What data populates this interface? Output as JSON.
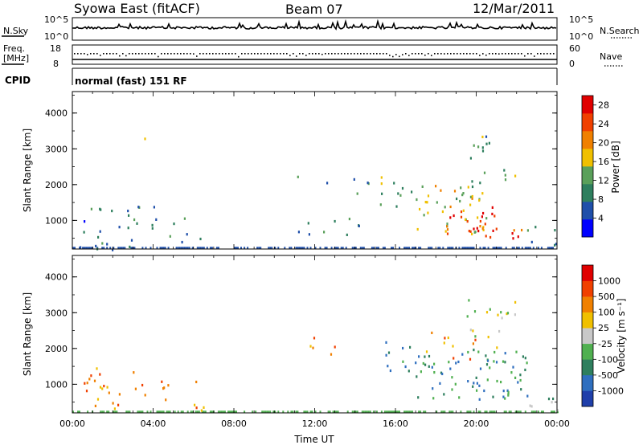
{
  "header": {
    "station": "Syowa East (fitACF)",
    "beam": "Beam 07",
    "date": "12/Mar/2011"
  },
  "noise_panel": {
    "left_label": "N.Sky",
    "right_label": "N.Search",
    "left_ticks": [
      "10^5",
      "10^0"
    ],
    "right_ticks": [
      "10^5",
      "10^0"
    ]
  },
  "freq_panel": {
    "left_label_1": "Freq.",
    "left_label_2": "[MHz]",
    "right_label": "Nave",
    "left_ticks": [
      "18",
      "8"
    ],
    "right_ticks": [
      "60",
      "0"
    ]
  },
  "cpid_panel": {
    "label": "CPID",
    "text": "normal (fast) 151 RF"
  },
  "colors": {
    "power_scale": [
      "#0000ff",
      "#1f4faa",
      "#2e7f5e",
      "#5aa05a",
      "#f0c000",
      "#f08000",
      "#f04000",
      "#e00000"
    ],
    "velocity_scale": [
      "#1f3faa",
      "#2f6fbf",
      "#2e7f5e",
      "#50b050",
      "#c8c8c8",
      "#f0c000",
      "#f08000",
      "#f04000",
      "#e00000"
    ]
  },
  "chart_data": [
    {
      "type": "heatmap",
      "name": "power",
      "xlabel": "",
      "ylabel": "Slant Range [km]",
      "xlim": [
        0,
        24
      ],
      "ylim": [
        200,
        4600
      ],
      "ytick_values": [
        1000,
        2000,
        3000,
        4000
      ],
      "ytick_labels": [
        "1000",
        "2000",
        "3000",
        "4000"
      ],
      "colorbar": {
        "label": "Power [dB]",
        "ticks": [
          "4",
          "8",
          "12",
          "16",
          "20",
          "24",
          "28"
        ],
        "range": [
          0,
          30
        ]
      },
      "patches": [
        {
          "t0": 0.2,
          "t1": 3.0,
          "r0": 200,
          "r1": 1400,
          "level": 8,
          "density": 0.35
        },
        {
          "t0": 3.0,
          "t1": 6.5,
          "r0": 300,
          "r1": 1500,
          "level": 9,
          "density": 0.2
        },
        {
          "t0": 1.0,
          "t1": 6.0,
          "r0": 3100,
          "r1": 3400,
          "level": 20,
          "density": 0.05
        },
        {
          "t0": 11.0,
          "t1": 15.0,
          "r0": 600,
          "r1": 2500,
          "level": 9,
          "density": 0.12
        },
        {
          "t0": 15.2,
          "t1": 17.5,
          "r0": 1300,
          "r1": 2300,
          "level": 12,
          "density": 0.3
        },
        {
          "t0": 17.0,
          "t1": 20.5,
          "r0": 600,
          "r1": 2000,
          "level": 16,
          "density": 0.5
        },
        {
          "t0": 18.5,
          "t1": 21.0,
          "r0": 500,
          "r1": 1400,
          "level": 26,
          "density": 0.65
        },
        {
          "t0": 19.5,
          "t1": 22.0,
          "r0": 1700,
          "r1": 3400,
          "level": 12,
          "density": 0.25
        },
        {
          "t0": 21.5,
          "t1": 22.3,
          "r0": 500,
          "r1": 1200,
          "level": 26,
          "density": 0.5
        },
        {
          "t0": 22.5,
          "t1": 24.0,
          "r0": 300,
          "r1": 1300,
          "level": 9,
          "density": 0.25
        }
      ]
    },
    {
      "type": "heatmap",
      "name": "velocity",
      "xlabel": "Time UT",
      "ylabel": "Slant Range [km]",
      "xlim": [
        0,
        24
      ],
      "ylim": [
        200,
        4600
      ],
      "xtick_values": [
        0,
        4,
        8,
        12,
        16,
        20,
        24
      ],
      "xtick_labels": [
        "00:00",
        "04:00",
        "08:00",
        "12:00",
        "16:00",
        "20:00",
        "00:00"
      ],
      "ytick_values": [
        1000,
        2000,
        3000,
        4000
      ],
      "ytick_labels": [
        "1000",
        "2000",
        "3000",
        "4000"
      ],
      "colorbar": {
        "label": "Velocity [m s⁻¹]",
        "ticks": [
          "1000",
          "500",
          "100",
          "25",
          "-25",
          "-100",
          "-500",
          "-1000"
        ]
      },
      "patches": [
        {
          "t0": 0.5,
          "t1": 3.0,
          "r0": 300,
          "r1": 1500,
          "level": 6,
          "density": 0.4
        },
        {
          "t0": 3.0,
          "t1": 6.5,
          "r0": 300,
          "r1": 1200,
          "level": 6,
          "density": 0.25
        },
        {
          "t0": 11.5,
          "t1": 13.5,
          "r0": 1500,
          "r1": 2500,
          "level": 6,
          "density": 0.15
        },
        {
          "t0": 15.3,
          "t1": 17.5,
          "r0": 1300,
          "r1": 2300,
          "level": 2,
          "density": 0.35
        },
        {
          "t0": 17.0,
          "t1": 22.5,
          "r0": 600,
          "r1": 2000,
          "level": 2,
          "density": 0.55
        },
        {
          "t0": 19.5,
          "t1": 22.0,
          "r0": 1800,
          "r1": 3400,
          "level": 4,
          "density": 0.3
        },
        {
          "t0": 17.5,
          "t1": 20.0,
          "r0": 1700,
          "r1": 2500,
          "level": 6,
          "density": 0.3
        },
        {
          "t0": 22.5,
          "t1": 24.0,
          "r0": 300,
          "r1": 1300,
          "level": 3,
          "density": 0.25
        }
      ]
    }
  ]
}
